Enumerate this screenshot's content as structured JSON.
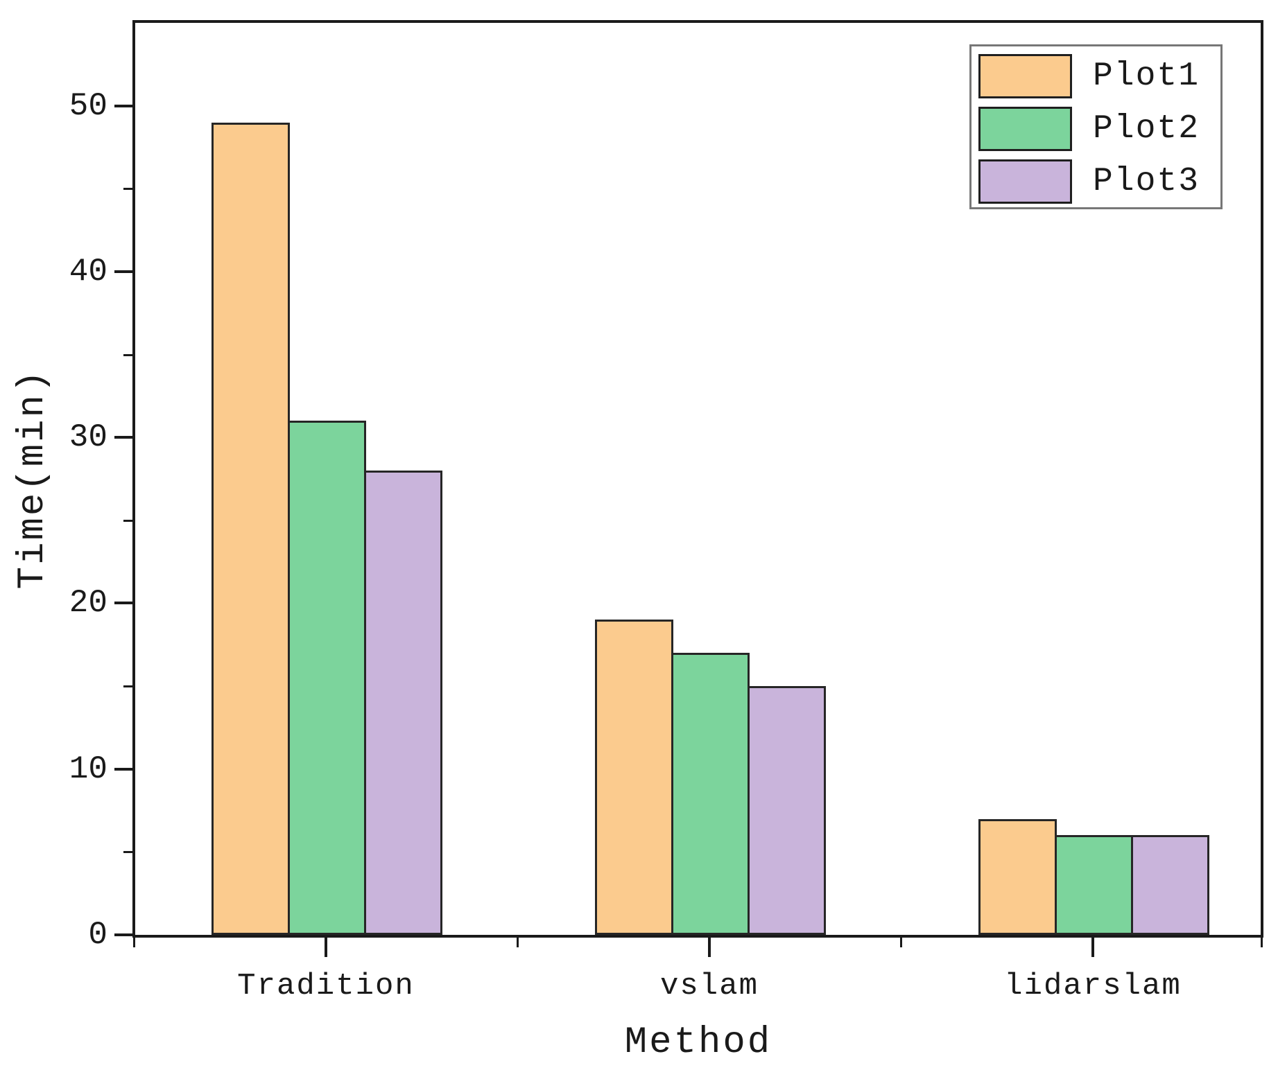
{
  "chart_data": {
    "type": "bar",
    "title": "",
    "categories": [
      "Tradition",
      "vslam",
      "lidarslam"
    ],
    "series": [
      {
        "name": "Plot1",
        "color": "#FBCB8E",
        "values": [
          49,
          19,
          7
        ]
      },
      {
        "name": "Plot2",
        "color": "#7CD49C",
        "values": [
          31,
          17,
          6
        ]
      },
      {
        "name": "Plot3",
        "color": "#C9B4DB",
        "values": [
          28,
          15,
          6
        ]
      }
    ],
    "xlabel": "Method",
    "ylabel": "Time(min)",
    "ylim": [
      0,
      55
    ],
    "yticks_major": [
      0,
      10,
      20,
      30,
      40,
      50
    ],
    "yticks_minor": [
      5,
      15,
      25,
      35,
      45
    ],
    "grid": false,
    "legend_position": "top-right",
    "bar_edge_color": "#262626",
    "axis_color": "#1a1a1a"
  }
}
